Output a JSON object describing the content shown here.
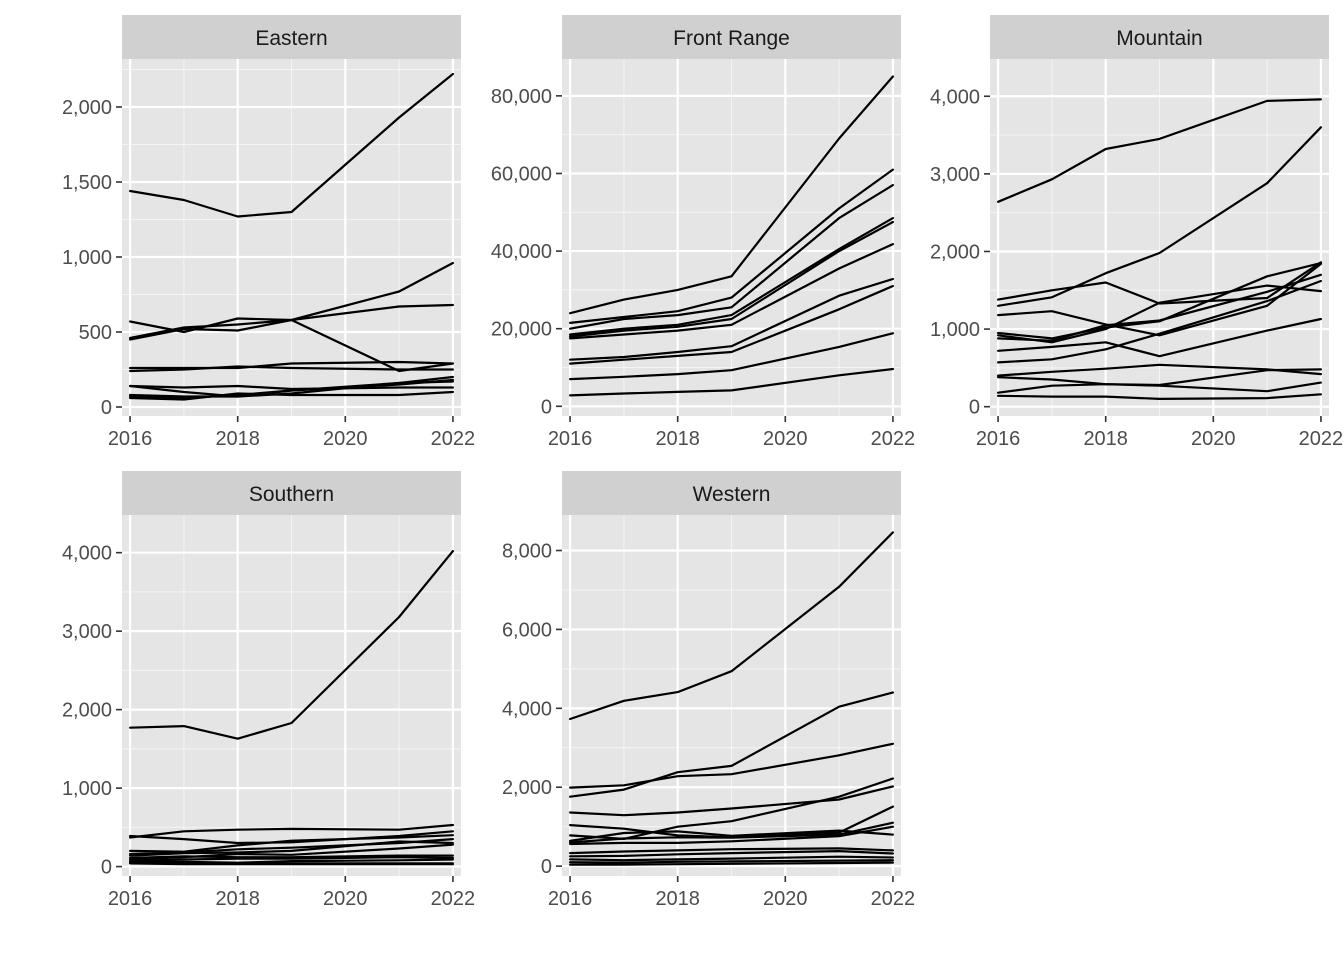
{
  "chart_data": {
    "type": "line",
    "facet_layout": "3 columns",
    "free_y_scales": true,
    "title": "",
    "xlabel": "",
    "ylabel": "",
    "legend": "none",
    "grid": true,
    "colors": {
      "panel_background": "#e5e5e5",
      "strip_background": "#d0d0d0",
      "grid": "#ffffff",
      "line": "#000000"
    },
    "x": [
      2016,
      2017,
      2018,
      2019,
      2021,
      2022
    ],
    "xlim": [
      2015.85,
      2022.15
    ],
    "x_ticks": [
      2016,
      2018,
      2020,
      2022
    ],
    "x_tick_labels": [
      "2016",
      "2018",
      "2020",
      "2022"
    ],
    "panels": [
      {
        "title": "Eastern",
        "ylim": [
          -60,
          2320
        ],
        "y_ticks": [
          0,
          500,
          1000,
          1500,
          2000
        ],
        "y_tick_labels": [
          "0",
          "500",
          "1,000",
          "1,500",
          "2,000"
        ],
        "series": [
          {
            "values": [
              1440,
              1380,
              1270,
              1300,
              1930,
              2220
            ]
          },
          {
            "values": [
              460,
              530,
              550,
              580,
              770,
              960
            ]
          },
          {
            "values": [
              450,
              520,
              510,
              580,
              670,
              680
            ]
          },
          {
            "values": [
              570,
              500,
              590,
              580,
              240,
              290
            ]
          },
          {
            "values": [
              260,
              260,
              260,
              290,
              300,
              290
            ]
          },
          {
            "values": [
              240,
              250,
              270,
              260,
              250,
              250
            ]
          },
          {
            "values": [
              140,
              130,
              140,
              120,
              130,
              130
            ]
          },
          {
            "values": [
              140,
              100,
              70,
              90,
              160,
              200
            ]
          },
          {
            "values": [
              80,
              70,
              70,
              110,
              150,
              180
            ]
          },
          {
            "values": [
              60,
              50,
              90,
              80,
              80,
              100
            ]
          },
          {
            "values": [
              70,
              60,
              80,
              110,
              160,
              170
            ]
          }
        ]
      },
      {
        "title": "Front Range",
        "ylim": [
          -2500,
          89500
        ],
        "y_ticks": [
          0,
          20000,
          40000,
          60000,
          80000
        ],
        "y_tick_labels": [
          "0",
          "20,000",
          "40,000",
          "60,000",
          "80,000"
        ],
        "series": [
          {
            "values": [
              24000,
              27500,
              30000,
              33500,
              69000,
              85000
            ]
          },
          {
            "values": [
              21500,
              23000,
              24500,
              28000,
              51000,
              61000
            ]
          },
          {
            "values": [
              20000,
              22500,
              23500,
              25500,
              48500,
              57000
            ]
          },
          {
            "values": [
              18500,
              20000,
              21000,
              23500,
              40500,
              48500
            ]
          },
          {
            "values": [
              18000,
              19500,
              20500,
              22500,
              40000,
              47500
            ]
          },
          {
            "values": [
              17500,
              18500,
              19500,
              21000,
              35500,
              41800
            ]
          },
          {
            "values": [
              12000,
              12700,
              14000,
              15500,
              28500,
              32800
            ]
          },
          {
            "values": [
              11000,
              12000,
              13000,
              14000,
              25000,
              31000
            ]
          },
          {
            "values": [
              7000,
              7600,
              8300,
              9300,
              15300,
              18800
            ]
          },
          {
            "values": [
              2800,
              3300,
              3700,
              4100,
              8000,
              9600
            ]
          }
        ]
      },
      {
        "title": "Mountain",
        "ylim": [
          -120,
          4480
        ],
        "y_ticks": [
          0,
          1000,
          2000,
          3000,
          4000
        ],
        "y_tick_labels": [
          "0",
          "1,000",
          "2,000",
          "3,000",
          "4,000"
        ],
        "series": [
          {
            "values": [
              2640,
              2930,
              3320,
              3450,
              3940,
              3960
            ]
          },
          {
            "values": [
              1300,
              1410,
              1720,
              1980,
              2880,
              3600
            ]
          },
          {
            "values": [
              1380,
              1500,
              1600,
              1330,
              1400,
              1860
            ]
          },
          {
            "values": [
              1180,
              1230,
              1060,
              920,
              1300,
              1840
            ]
          },
          {
            "values": [
              950,
              880,
              1020,
              1100,
              1680,
              1850
            ]
          },
          {
            "values": [
              920,
              830,
              1000,
              1340,
              1560,
              1490
            ]
          },
          {
            "values": [
              880,
              850,
              1050,
              1110,
              1480,
              1700
            ]
          },
          {
            "values": [
              720,
              770,
              830,
              650,
              980,
              1130
            ]
          },
          {
            "values": [
              570,
              610,
              740,
              940,
              1360,
              1620
            ]
          },
          {
            "values": [
              400,
              450,
              490,
              540,
              480,
              420
            ]
          },
          {
            "values": [
              380,
              350,
              290,
              270,
              200,
              310
            ]
          },
          {
            "values": [
              180,
              270,
              290,
              280,
              470,
              480
            ]
          },
          {
            "values": [
              140,
              130,
              130,
              100,
              110,
              160
            ]
          }
        ]
      },
      {
        "title": "Southern",
        "ylim": [
          -120,
          4480
        ],
        "y_ticks": [
          0,
          1000,
          2000,
          3000,
          4000
        ],
        "y_tick_labels": [
          "0",
          "1,000",
          "2,000",
          "3,000",
          "4,000"
        ],
        "series": [
          {
            "values": [
              1770,
              1790,
              1630,
              1830,
              3180,
              4020
            ]
          },
          {
            "values": [
              370,
              450,
              470,
              480,
              470,
              530
            ]
          },
          {
            "values": [
              390,
              350,
              300,
              310,
              390,
              450
            ]
          },
          {
            "values": [
              200,
              190,
              270,
              330,
              370,
              400
            ]
          },
          {
            "values": [
              160,
              180,
              220,
              240,
              300,
              350
            ]
          },
          {
            "values": [
              140,
              170,
              180,
              200,
              320,
              300
            ]
          },
          {
            "values": [
              90,
              120,
              160,
              150,
              230,
              280
            ]
          },
          {
            "values": [
              110,
              130,
              120,
              120,
              140,
              140
            ]
          },
          {
            "values": [
              70,
              90,
              100,
              100,
              120,
              110
            ]
          },
          {
            "values": [
              60,
              60,
              50,
              70,
              80,
              90
            ]
          },
          {
            "values": [
              50,
              50,
              40,
              40,
              40,
              40
            ]
          },
          {
            "values": [
              40,
              30,
              30,
              30,
              30,
              30
            ]
          }
        ]
      },
      {
        "title": "Western",
        "ylim": [
          -250,
          8900
        ],
        "y_ticks": [
          0,
          2000,
          4000,
          6000,
          8000
        ],
        "y_tick_labels": [
          "0",
          "2,000",
          "4,000",
          "6,000",
          "8,000"
        ],
        "series": [
          {
            "values": [
              3730,
              4190,
              4410,
              4940,
              7080,
              8460
            ]
          },
          {
            "values": [
              1760,
              1940,
              2380,
              2540,
              4040,
              4400
            ]
          },
          {
            "values": [
              1990,
              2050,
              2280,
              2330,
              2810,
              3100
            ]
          },
          {
            "values": [
              1360,
              1290,
              1360,
              1460,
              1690,
              2020
            ]
          },
          {
            "values": [
              780,
              690,
              1000,
              1140,
              1760,
              2220
            ]
          },
          {
            "values": [
              1040,
              950,
              780,
              730,
              850,
              1510
            ]
          },
          {
            "values": [
              640,
              840,
              880,
              770,
              900,
              800
            ]
          },
          {
            "values": [
              600,
              700,
              730,
              720,
              800,
              1100
            ]
          },
          {
            "values": [
              560,
              590,
              590,
              630,
              760,
              1000
            ]
          },
          {
            "values": [
              330,
              370,
              400,
              430,
              450,
              400
            ]
          },
          {
            "values": [
              250,
              260,
              300,
              330,
              380,
              320
            ]
          },
          {
            "values": [
              170,
              150,
              170,
              190,
              240,
              220
            ]
          },
          {
            "values": [
              100,
              90,
              110,
              120,
              140,
              150
            ]
          },
          {
            "values": [
              40,
              40,
              50,
              60,
              80,
              90
            ]
          }
        ]
      }
    ]
  }
}
